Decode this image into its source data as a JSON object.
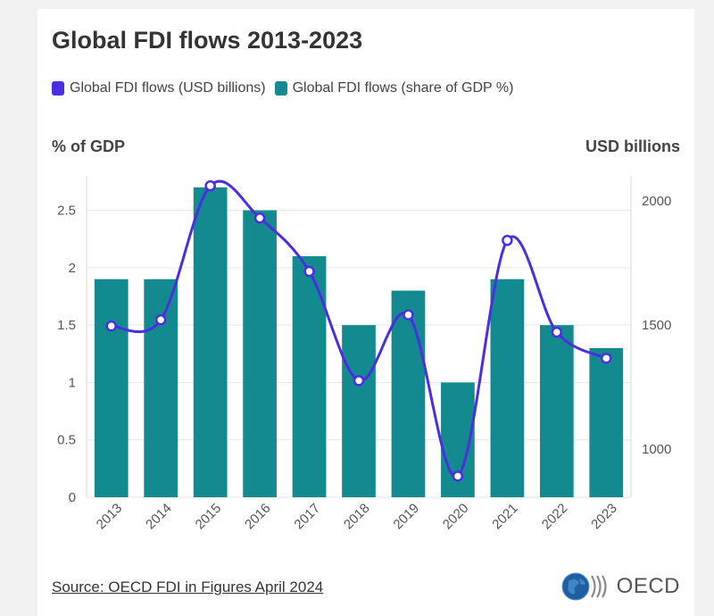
{
  "title": "Global FDI flows 2013-2023",
  "legend": [
    {
      "label": "Global FDI flows (USD billions)",
      "color": "#4a2ee0"
    },
    {
      "label": "Global FDI flows (share of GDP %)",
      "color": "#138a8f"
    }
  ],
  "axis": {
    "left_title": "% of GDP",
    "right_title": "USD billions"
  },
  "source": "Source: OECD FDI in Figures April 2024",
  "logo_text": "OECD",
  "chart_data": {
    "type": "bar",
    "title": "Global FDI flows 2013-2023",
    "categories": [
      "2013",
      "2014",
      "2015",
      "2016",
      "2017",
      "2018",
      "2019",
      "2020",
      "2021",
      "2022",
      "2023"
    ],
    "series": [
      {
        "name": "Global FDI flows (share of GDP %)",
        "type": "bar",
        "axis": "left",
        "color": "#138a8f",
        "values": [
          1.9,
          1.9,
          2.7,
          2.5,
          2.1,
          1.5,
          1.8,
          1.0,
          1.9,
          1.5,
          1.3
        ]
      },
      {
        "name": "Global FDI flows (USD billions)",
        "type": "line",
        "axis": "right",
        "color": "#4a2ee0",
        "values": [
          1495,
          1520,
          2060,
          1930,
          1715,
          1275,
          1540,
          890,
          1840,
          1470,
          1365
        ]
      }
    ],
    "ylabel_left": "% of GDP",
    "ylabel_right": "USD billions",
    "ylim_left": [
      0,
      2.8
    ],
    "yticks_left": [
      0,
      0.5,
      1,
      1.5,
      2,
      2.5
    ],
    "ytick_labels_left": [
      "0",
      "0.5",
      "1",
      "1.5",
      "2",
      "2.5"
    ],
    "ylim_right": [
      805,
      2100
    ],
    "yticks_right": [
      1000,
      1500,
      2000
    ],
    "ytick_labels_right": [
      "1000",
      "1500",
      "2000"
    ],
    "grid": true
  }
}
